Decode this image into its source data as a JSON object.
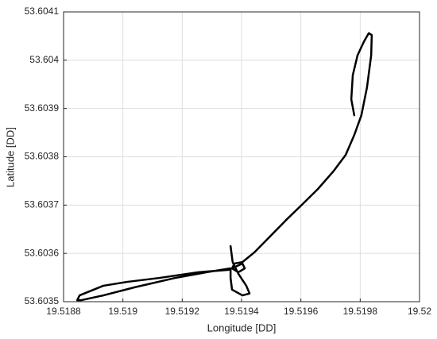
{
  "chart_data": {
    "type": "line",
    "xlabel": "Longitude [DD]",
    "ylabel": "Latitude [DD]",
    "xlim": [
      19.5188,
      19.52
    ],
    "ylim": [
      53.6035,
      53.6041
    ],
    "xticks": [
      19.5188,
      19.519,
      19.5192,
      19.5194,
      19.5196,
      19.5198,
      19.52
    ],
    "yticks": [
      53.6035,
      53.6036,
      53.6037,
      53.6038,
      53.6039,
      53.604,
      53.6041
    ],
    "grid": true,
    "series": [
      {
        "color": "#000000",
        "x": [
          19.51978,
          19.51977,
          19.519775,
          19.519791,
          19.519813,
          19.519829,
          19.519839,
          19.519837,
          19.519823,
          19.519804,
          19.51978,
          19.519751,
          19.519711,
          19.519657,
          19.519604,
          19.51955,
          19.519496,
          19.519443,
          19.519403,
          19.519376,
          19.519368,
          19.519389,
          19.519411,
          19.519403,
          19.519357,
          19.519255,
          19.519121,
          19.519014,
          19.518934,
          19.518854,
          19.518846,
          19.518859,
          19.518934,
          19.519041,
          19.519175,
          19.519282,
          19.519363,
          19.519363,
          19.519368,
          19.519403,
          19.519427,
          19.519416,
          19.519389,
          19.51937,
          19.519363
        ],
        "values": [
          53.603886,
          53.603919,
          53.603969,
          53.60401,
          53.604039,
          53.604056,
          53.604052,
          53.60401,
          53.603944,
          53.603886,
          53.603845,
          53.603804,
          53.603771,
          53.603733,
          53.603701,
          53.603669,
          53.603635,
          53.603602,
          53.603582,
          53.603579,
          53.603569,
          53.603561,
          53.603569,
          53.603579,
          53.603566,
          53.603561,
          53.603549,
          53.603541,
          53.603533,
          53.603513,
          53.603503,
          53.603503,
          53.603513,
          53.60353,
          53.603549,
          53.603561,
          53.603569,
          53.603549,
          53.603525,
          53.603513,
          53.603517,
          53.603533,
          53.603558,
          53.603582,
          53.603615
        ]
      }
    ]
  }
}
